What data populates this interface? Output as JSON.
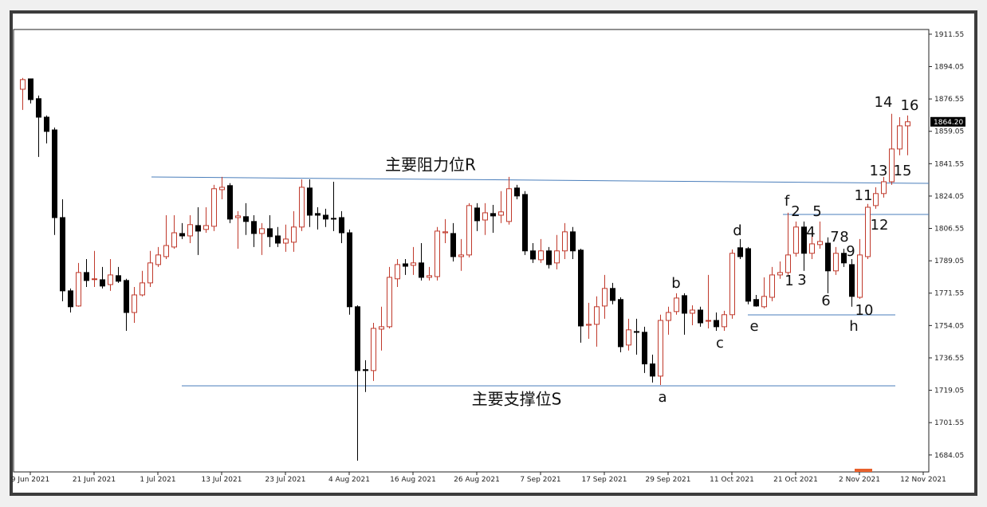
{
  "chart_data": {
    "type": "candlestick",
    "up_color": "#c0392b",
    "down_color": "#000000",
    "line_color": "#4a7ebb",
    "ylim": [
      1674.9,
      1914.1
    ],
    "yticks": [
      1911.55,
      1894.05,
      1876.55,
      1859.05,
      1841.55,
      1824.05,
      1806.55,
      1789.05,
      1771.55,
      1754.05,
      1736.55,
      1719.05,
      1701.55,
      1684.05
    ],
    "xlim": [
      -1.1,
      113.7
    ],
    "xticks": [
      {
        "value": 1,
        "label": "9 Jun 2021"
      },
      {
        "value": 9,
        "label": "21 Jun 2021"
      },
      {
        "value": 17,
        "label": "1 Jul 2021"
      },
      {
        "value": 25,
        "label": "13 Jul 2021"
      },
      {
        "value": 33,
        "label": "23 Jul 2021"
      },
      {
        "value": 41,
        "label": "4 Aug 2021"
      },
      {
        "value": 49,
        "label": "16 Aug 2021"
      },
      {
        "value": 57,
        "label": "26 Aug 2021"
      },
      {
        "value": 65,
        "label": "7 Sep 2021"
      },
      {
        "value": 73,
        "label": "17 Sep 2021"
      },
      {
        "value": 81,
        "label": "29 Sep 2021"
      },
      {
        "value": 89,
        "label": "11 Oct 2021"
      },
      {
        "value": 97,
        "label": "21 Oct 2021"
      },
      {
        "value": 105,
        "label": "2 Nov 2021"
      },
      {
        "value": 113,
        "label": "12 Nov 2021"
      }
    ],
    "last_price": {
      "value": 1864.2,
      "label": "1864.20"
    },
    "open": [
      1881.8,
      1887.4,
      1876.7,
      1866.7,
      1859.8,
      1812.4,
      1772.8,
      1764.6,
      1782.7,
      1778.9,
      1778.8,
      1776.2,
      1781.0,
      1778.4,
      1761.1,
      1770.6,
      1777.1,
      1787.0,
      1791.3,
      1796.5,
      1803.8,
      1802.5,
      1808.1,
      1806.0,
      1807.7,
      1827.5,
      1829.7,
      1812.4,
      1812.9,
      1810.3,
      1803.8,
      1806.4,
      1802.5,
      1798.6,
      1799.1,
      1807.3,
      1828.4,
      1814.6,
      1813.7,
      1812.0,
      1812.4,
      1804.2,
      1764.2,
      1730.2,
      1729.7,
      1752.1,
      1753.4,
      1779.3,
      1787.4,
      1786.6,
      1787.9,
      1780.1,
      1780.5,
      1804.2,
      1803.8,
      1791.3,
      1792.2,
      1817.6,
      1811.1,
      1814.6,
      1813.7,
      1810.3,
      1828.4,
      1824.9,
      1794.4,
      1789.6,
      1794.4,
      1787.9,
      1794.4,
      1804.7,
      1794.8,
      1754.2,
      1754.7,
      1764.6,
      1774.1,
      1768.1,
      1743.5,
      1750.8,
      1750.4,
      1733.3,
      1726.7,
      1756.8,
      1761.6,
      1770.2,
      1760.7,
      1762.4,
      1756.4,
      1756.8,
      1753.4,
      1759.9,
      1796.1,
      1795.6,
      1768.1,
      1764.2,
      1769.3,
      1781.4,
      1782.7,
      1793.1,
      1807.3,
      1793.1,
      1797.8,
      1798.6,
      1783.6,
      1793.1,
      1787.0,
      1769.3,
      1791.3,
      1818.9,
      1825.4,
      1831.8,
      1849.5,
      1862.0
    ],
    "high": [
      1887.9,
      1887.4,
      1878.4,
      1867.6,
      1861.1,
      1822.3,
      1774.1,
      1787.9,
      1790.0,
      1794.4,
      1785.7,
      1790.0,
      1785.7,
      1779.3,
      1774.9,
      1783.6,
      1794.4,
      1796.5,
      1813.7,
      1813.7,
      1809.4,
      1813.7,
      1818.0,
      1818.0,
      1830.1,
      1834.4,
      1831.0,
      1815.9,
      1820.2,
      1813.7,
      1809.4,
      1813.7,
      1807.3,
      1808.6,
      1815.9,
      1833.1,
      1833.1,
      1818.0,
      1817.2,
      1831.8,
      1815.9,
      1806.0,
      1765.0,
      1735.3,
      1755.5,
      1764.2,
      1785.7,
      1790.0,
      1790.0,
      1796.5,
      1798.6,
      1785.7,
      1807.3,
      1811.6,
      1809.4,
      1800.8,
      1820.2,
      1820.2,
      1820.2,
      1819.3,
      1826.7,
      1834.4,
      1830.1,
      1826.7,
      1798.6,
      1800.8,
      1796.5,
      1803.0,
      1809.4,
      1807.3,
      1795.6,
      1766.3,
      1769.8,
      1781.4,
      1777.1,
      1769.3,
      1757.7,
      1757.7,
      1753.4,
      1738.3,
      1759.9,
      1764.2,
      1771.5,
      1771.5,
      1765.0,
      1764.2,
      1781.4,
      1761.1,
      1762.0,
      1795.2,
      1800.8,
      1796.5,
      1770.6,
      1780.1,
      1785.7,
      1788.7,
      1815.0,
      1810.3,
      1810.3,
      1805.1,
      1810.3,
      1801.7,
      1796.5,
      1795.6,
      1790.0,
      1800.8,
      1819.8,
      1828.8,
      1834.4,
      1868.5,
      1866.7,
      1867.6
    ],
    "low": [
      1870.6,
      1874.1,
      1845.2,
      1852.5,
      1803.0,
      1767.2,
      1761.1,
      1764.2,
      1774.9,
      1774.9,
      1774.1,
      1772.8,
      1777.1,
      1751.2,
      1755.5,
      1769.8,
      1774.9,
      1785.7,
      1790.0,
      1795.6,
      1800.8,
      1798.6,
      1792.2,
      1804.2,
      1805.1,
      1822.3,
      1809.4,
      1795.6,
      1803.0,
      1796.5,
      1792.2,
      1796.5,
      1796.5,
      1793.9,
      1793.9,
      1805.1,
      1807.3,
      1806.0,
      1807.3,
      1805.1,
      1798.6,
      1759.9,
      1681.0,
      1718.1,
      1724.1,
      1740.5,
      1752.5,
      1774.9,
      1781.4,
      1781.4,
      1778.4,
      1778.4,
      1778.4,
      1798.6,
      1788.7,
      1783.6,
      1790.9,
      1805.1,
      1803.0,
      1804.2,
      1809.4,
      1808.6,
      1822.3,
      1792.2,
      1787.9,
      1787.9,
      1784.9,
      1784.4,
      1790.0,
      1790.0,
      1744.8,
      1746.9,
      1742.6,
      1757.7,
      1765.5,
      1739.6,
      1740.5,
      1738.3,
      1728.4,
      1723.2,
      1721.9,
      1749.1,
      1759.9,
      1749.1,
      1754.2,
      1753.4,
      1752.5,
      1751.2,
      1751.2,
      1757.7,
      1790.0,
      1765.5,
      1764.2,
      1763.3,
      1767.2,
      1779.3,
      1781.4,
      1791.3,
      1783.6,
      1790.0,
      1795.6,
      1771.5,
      1781.4,
      1785.7,
      1764.2,
      1768.5,
      1790.0,
      1817.2,
      1823.2,
      1830.1,
      1846.1,
      1846.1
    ],
    "close": [
      1887.0,
      1876.2,
      1866.7,
      1859.0,
      1812.4,
      1772.8,
      1764.2,
      1782.7,
      1778.4,
      1779.3,
      1775.4,
      1781.4,
      1778.0,
      1761.1,
      1770.6,
      1777.1,
      1787.9,
      1792.2,
      1797.3,
      1804.2,
      1802.5,
      1808.6,
      1805.1,
      1808.1,
      1828.0,
      1828.8,
      1811.6,
      1813.3,
      1810.3,
      1803.8,
      1806.4,
      1802.1,
      1798.6,
      1800.8,
      1807.3,
      1828.8,
      1813.7,
      1813.7,
      1811.6,
      1811.6,
      1804.2,
      1764.2,
      1729.7,
      1729.7,
      1752.5,
      1753.4,
      1780.1,
      1787.0,
      1786.1,
      1787.9,
      1780.1,
      1781.0,
      1805.1,
      1804.7,
      1791.3,
      1792.2,
      1818.9,
      1810.7,
      1815.0,
      1813.3,
      1815.5,
      1828.0,
      1824.1,
      1794.4,
      1790.0,
      1794.4,
      1787.0,
      1794.4,
      1804.7,
      1794.4,
      1753.8,
      1754.7,
      1764.2,
      1774.1,
      1767.6,
      1742.6,
      1751.7,
      1750.4,
      1733.3,
      1726.7,
      1756.8,
      1761.1,
      1768.9,
      1760.7,
      1762.4,
      1755.5,
      1756.8,
      1753.4,
      1759.9,
      1793.1,
      1791.3,
      1767.2,
      1764.6,
      1769.8,
      1781.4,
      1782.7,
      1792.2,
      1807.3,
      1793.1,
      1798.2,
      1799.5,
      1783.6,
      1793.1,
      1787.9,
      1769.8,
      1792.2,
      1818.0,
      1825.4,
      1831.8,
      1849.5,
      1862.0,
      1864.2
    ],
    "annotations": [
      "主要阻力位R",
      "主要支撑位S",
      "a",
      "b",
      "c",
      "d",
      "e",
      "f",
      "h",
      "1",
      "2",
      "3",
      "4",
      "5",
      "6",
      "7",
      "8",
      "9",
      "10",
      "11",
      "12",
      "13",
      "14",
      "15",
      "16"
    ]
  }
}
